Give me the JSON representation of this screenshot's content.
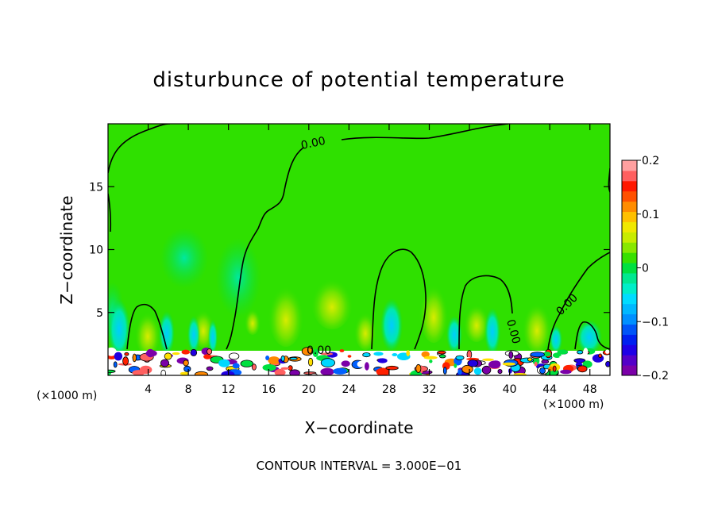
{
  "chart_data": {
    "type": "heatmap",
    "title": "disturbunce of potential temperature",
    "xlabel": "X−coordinate",
    "ylabel": "Z−coordinate",
    "x_unit": "(×1000 m)",
    "xlim": [
      0,
      50
    ],
    "ylim": [
      0,
      20
    ],
    "x_ticks": [
      4,
      8,
      12,
      16,
      20,
      24,
      28,
      32,
      36,
      40,
      44,
      48
    ],
    "y_ticks": [
      5,
      10,
      15
    ],
    "contour_interval_text": "CONTOUR INTERVAL = 3.000E−01",
    "contour_label": "0.00",
    "colorbar": {
      "min": -0.2,
      "max": 0.2,
      "tick_labels": [
        "0.2",
        "0.1",
        "0",
        "−0.1",
        "−0.2"
      ],
      "tick_values": [
        0.2,
        0.1,
        0,
        -0.1,
        -0.2
      ],
      "colors": [
        "#7b00a8",
        "#5400c8",
        "#1e00e6",
        "#0020f0",
        "#0055f8",
        "#0090ff",
        "#00b8ff",
        "#00dcff",
        "#00eec8",
        "#00e890",
        "#00e040",
        "#38e000",
        "#88e800",
        "#c8ec00",
        "#f0e800",
        "#ffc000",
        "#ff8c00",
        "#ff5000",
        "#ff1800",
        "#ff6060",
        "#ffa0a0"
      ]
    }
  }
}
